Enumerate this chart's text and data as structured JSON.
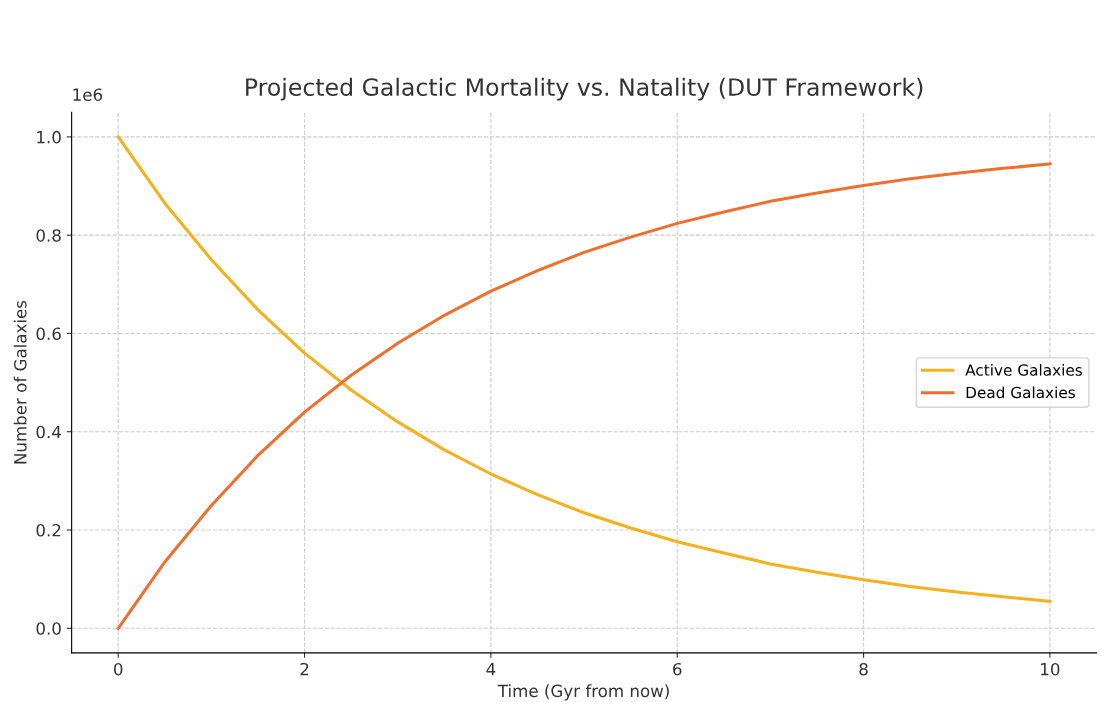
{
  "chart_data": {
    "type": "line",
    "title": "Projected Galactic Mortality vs. Natality (DUT Framework)",
    "xlabel": "Time (Gyr from now)",
    "ylabel": "Number of Galaxies",
    "x": [
      0,
      0.5,
      1,
      1.5,
      2,
      2.5,
      3,
      3.5,
      4,
      4.5,
      5,
      5.5,
      6,
      6.5,
      7,
      7.5,
      8,
      8.5,
      9,
      9.5,
      10
    ],
    "series": [
      {
        "name": "Active Galaxies",
        "color": "#f5b01c",
        "values": [
          1.0,
          0.865,
          0.75,
          0.648,
          0.56,
          0.485,
          0.42,
          0.363,
          0.314,
          0.272,
          0.235,
          0.204,
          0.176,
          0.153,
          0.131,
          0.114,
          0.099,
          0.085,
          0.074,
          0.064,
          0.055
        ]
      },
      {
        "name": "Dead Galaxies",
        "color": "#ef6f2e",
        "values": [
          0,
          0.135,
          0.25,
          0.352,
          0.44,
          0.515,
          0.58,
          0.637,
          0.686,
          0.728,
          0.765,
          0.796,
          0.824,
          0.847,
          0.869,
          0.886,
          0.901,
          0.915,
          0.926,
          0.936,
          0.945
        ]
      }
    ],
    "xlim": [
      -0.5,
      10.5
    ],
    "xticks": [
      0,
      2,
      4,
      6,
      8,
      10
    ],
    "ylim": [
      -0.05,
      1.05
    ],
    "yticks": [
      {
        "value": 0,
        "label": "0.0"
      },
      0.2,
      0.4,
      0.6,
      0.8,
      {
        "value": 1,
        "label": "1.0"
      }
    ],
    "annotations": [
      "1e6"
    ],
    "grid": true,
    "legend": "right",
    "marker": "none",
    "line_style": "solid"
  }
}
